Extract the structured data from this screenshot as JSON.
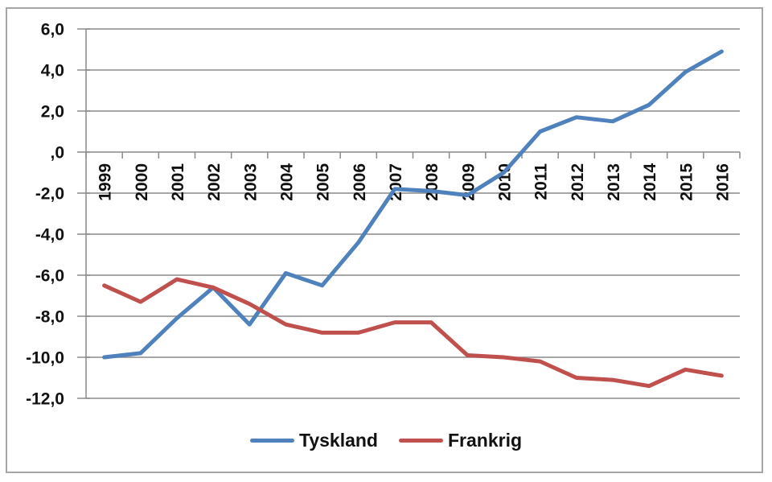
{
  "window": {
    "background": "#ffffff",
    "frame_border_color": "#a6a6a6"
  },
  "chart_data": {
    "type": "line",
    "title": "",
    "xlabel": "",
    "ylabel": "",
    "categories": [
      "1999",
      "2000",
      "2001",
      "2002",
      "2003",
      "2004",
      "2005",
      "2006",
      "2007",
      "2008",
      "2009",
      "2010",
      "2011",
      "2012",
      "2013",
      "2014",
      "2015",
      "2016"
    ],
    "series": [
      {
        "name": "Tyskland",
        "color": "#4F81BD",
        "values": [
          -10.0,
          -9.8,
          -8.1,
          -6.6,
          -8.4,
          -5.9,
          -6.5,
          -4.4,
          -1.8,
          -1.9,
          -2.1,
          -1.0,
          1.0,
          1.7,
          1.5,
          2.3,
          3.9,
          4.9
        ]
      },
      {
        "name": "Frankrig",
        "color": "#C0504D",
        "values": [
          -6.5,
          -7.3,
          -6.2,
          -6.6,
          -7.4,
          -8.4,
          -8.8,
          -8.8,
          -8.3,
          -8.3,
          -9.9,
          -10.0,
          -10.2,
          -11.0,
          -11.1,
          -11.4,
          -10.6,
          -10.9
        ]
      }
    ],
    "y_axis": {
      "tick_values": [
        6,
        4,
        2,
        0,
        -2,
        -4,
        -6,
        -8,
        -10,
        -12
      ],
      "tick_labels": [
        "6,0",
        "4,0",
        "2,0",
        ",0",
        "-2,0",
        "-4,0",
        "-6,0",
        "-8,0",
        "-10,0",
        "-12,0"
      ],
      "ylim": [
        -12,
        6
      ]
    },
    "x_axis": {
      "labels_rotated_degrees": -90,
      "ticks_between_categories": true
    },
    "grid": true,
    "gridline_color": "#8a8a8a",
    "legend_position": "bottom"
  },
  "legend": {
    "items": [
      {
        "label": "Tyskland",
        "color": "#4F81BD"
      },
      {
        "label": "Frankrig",
        "color": "#C0504D"
      }
    ]
  }
}
